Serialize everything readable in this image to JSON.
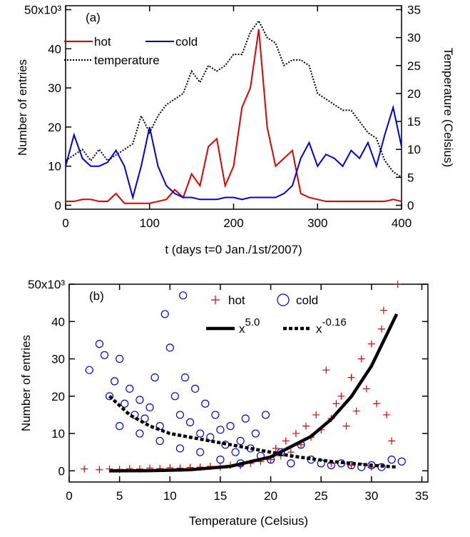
{
  "chart_data": [
    {
      "type": "line",
      "annotation": "(a)",
      "xlabel": "t (days t=0 Jan./1st/2007)",
      "ylabel": "Number of entries",
      "y2label": "Temperature (Celsius)",
      "x": [
        0,
        10,
        20,
        30,
        40,
        50,
        60,
        70,
        80,
        90,
        100,
        110,
        120,
        130,
        140,
        150,
        160,
        170,
        180,
        190,
        200,
        210,
        220,
        230,
        240,
        250,
        260,
        270,
        280,
        290,
        300,
        310,
        320,
        330,
        340,
        350,
        360,
        370,
        380,
        390,
        400
      ],
      "xlim": [
        0,
        400
      ],
      "xticks": [
        0,
        100,
        200,
        300,
        400
      ],
      "ylim": [
        -1,
        51
      ],
      "yticks": [
        0,
        10,
        20,
        30,
        40,
        {
          "value": 50,
          "label": "50x10³"
        }
      ],
      "y2lim": [
        -0.7,
        35.7
      ],
      "y2ticks": [
        0,
        5,
        10,
        15,
        20,
        25,
        30,
        35
      ],
      "series": [
        {
          "name": "hot",
          "color": "#e00000",
          "values": [
            1,
            1,
            1.5,
            1.5,
            1,
            1,
            3,
            0.5,
            0.5,
            0.5,
            0.5,
            1,
            1.5,
            4,
            2,
            8,
            5,
            15,
            17,
            5,
            10,
            25,
            30,
            45,
            20,
            10,
            12,
            14,
            3,
            2,
            1.5,
            1,
            1,
            1,
            1,
            1,
            1,
            1,
            1,
            1.5,
            1
          ]
        },
        {
          "name": "cold",
          "color": "#0000e0",
          "values": [
            10,
            18,
            12,
            10,
            10,
            11,
            14,
            10,
            2,
            10,
            20,
            10,
            5,
            3,
            2,
            2,
            1.5,
            1.5,
            1.5,
            2,
            2,
            1.5,
            2,
            2,
            2,
            2,
            3,
            5,
            12,
            16,
            10,
            13,
            12,
            10,
            14,
            12,
            16,
            10,
            18,
            25,
            15
          ]
        },
        {
          "name": "temperature",
          "color": "#000000",
          "dash": "dotted",
          "axis": "y2",
          "values": [
            8,
            9,
            10,
            8,
            10,
            8,
            9,
            10,
            11,
            16,
            13,
            16,
            18,
            19,
            20,
            24,
            22,
            25,
            24,
            25,
            27,
            27,
            31,
            33,
            30,
            29,
            25,
            26,
            26,
            25,
            20,
            19,
            18,
            17,
            17,
            15,
            13,
            12,
            8,
            6,
            5
          ]
        }
      ]
    },
    {
      "type": "scatter",
      "annotation": "(b)",
      "xlabel": "Temperature (Celsius)",
      "ylabel": "Number of entries",
      "xlim": [
        0,
        35.6
      ],
      "xticks": [
        0,
        5,
        10,
        15,
        20,
        25,
        30,
        35
      ],
      "ylim": [
        -3,
        50
      ],
      "yticks": [
        0,
        10,
        20,
        30,
        40,
        {
          "value": 50,
          "label": "50x10³"
        }
      ],
      "series": [
        {
          "name": "hot",
          "color": "#e00000",
          "marker": "plus",
          "x": [
            1.5,
            3,
            4,
            5,
            6,
            7,
            8,
            9,
            10,
            11,
            12,
            13,
            14,
            15,
            16,
            17,
            18,
            19,
            20,
            20.5,
            21,
            21.5,
            22,
            22.5,
            23,
            23.5,
            24,
            24.5,
            25,
            25.5,
            26,
            26.5,
            27,
            27.5,
            28,
            28.5,
            29,
            29.5,
            30,
            30.5,
            31,
            31.2,
            31.5,
            32,
            32.6,
            26,
            28,
            30
          ],
          "values": [
            0.5,
            0.3,
            0.5,
            0.4,
            0.6,
            0.5,
            0.7,
            0.6,
            0.8,
            0.7,
            0.9,
            1,
            1.2,
            1,
            1.5,
            1.4,
            2,
            2.5,
            3,
            6,
            4,
            8,
            5,
            10,
            7,
            12,
            9,
            15,
            11,
            27,
            14,
            18,
            20,
            12,
            25,
            16,
            30,
            22,
            34,
            18,
            38,
            43,
            15,
            8,
            50,
            2,
            1.5,
            1
          ]
        },
        {
          "name": "cold",
          "color": "#0000e0",
          "marker": "circle",
          "x": [
            2,
            3,
            3.5,
            4,
            4.5,
            5,
            5.5,
            6,
            6.5,
            7,
            7.5,
            8,
            8.5,
            9,
            9.5,
            10,
            10.5,
            11,
            11.3,
            11.5,
            12,
            12.5,
            13,
            13.5,
            14,
            14.5,
            15,
            15.5,
            16,
            16.5,
            17,
            17.5,
            18,
            18.5,
            19,
            19.5,
            20,
            21,
            22,
            23,
            24,
            25,
            26,
            27,
            28,
            29,
            30,
            31,
            32,
            33,
            5,
            7,
            9,
            11,
            13,
            15,
            17
          ],
          "values": [
            27,
            34,
            31,
            20,
            24,
            30,
            18,
            22,
            15,
            19,
            14,
            17,
            25,
            12,
            42,
            33,
            20,
            15,
            47,
            25,
            13,
            22,
            10,
            18,
            9,
            15,
            11,
            7,
            12,
            5,
            8,
            14,
            6,
            10,
            4,
            15,
            3,
            5,
            2,
            7,
            3,
            2,
            1.5,
            2,
            1.5,
            1,
            1.5,
            1,
            3,
            2.5,
            12,
            10,
            8,
            6,
            5,
            3,
            2
          ]
        },
        {
          "name": "x",
          "name_sup": "5.0",
          "type": "line",
          "color": "#000000",
          "x": [
            4,
            8,
            12,
            16,
            20,
            24,
            26,
            28,
            30,
            32.5
          ],
          "values": [
            0.0012,
            0.038,
            0.29,
            1.21,
            3.71,
            9.22,
            13.8,
            19.9,
            28.1,
            42
          ]
        },
        {
          "name": "x",
          "name_sup": "-0.16",
          "type": "line",
          "color": "#000000",
          "dash": "dashed",
          "x": [
            4,
            6,
            8,
            10,
            14,
            18,
            22,
            26,
            30,
            32.5
          ],
          "values": [
            20,
            15,
            12,
            10,
            8,
            6,
            4,
            2.5,
            1.5,
            1
          ]
        }
      ]
    }
  ]
}
